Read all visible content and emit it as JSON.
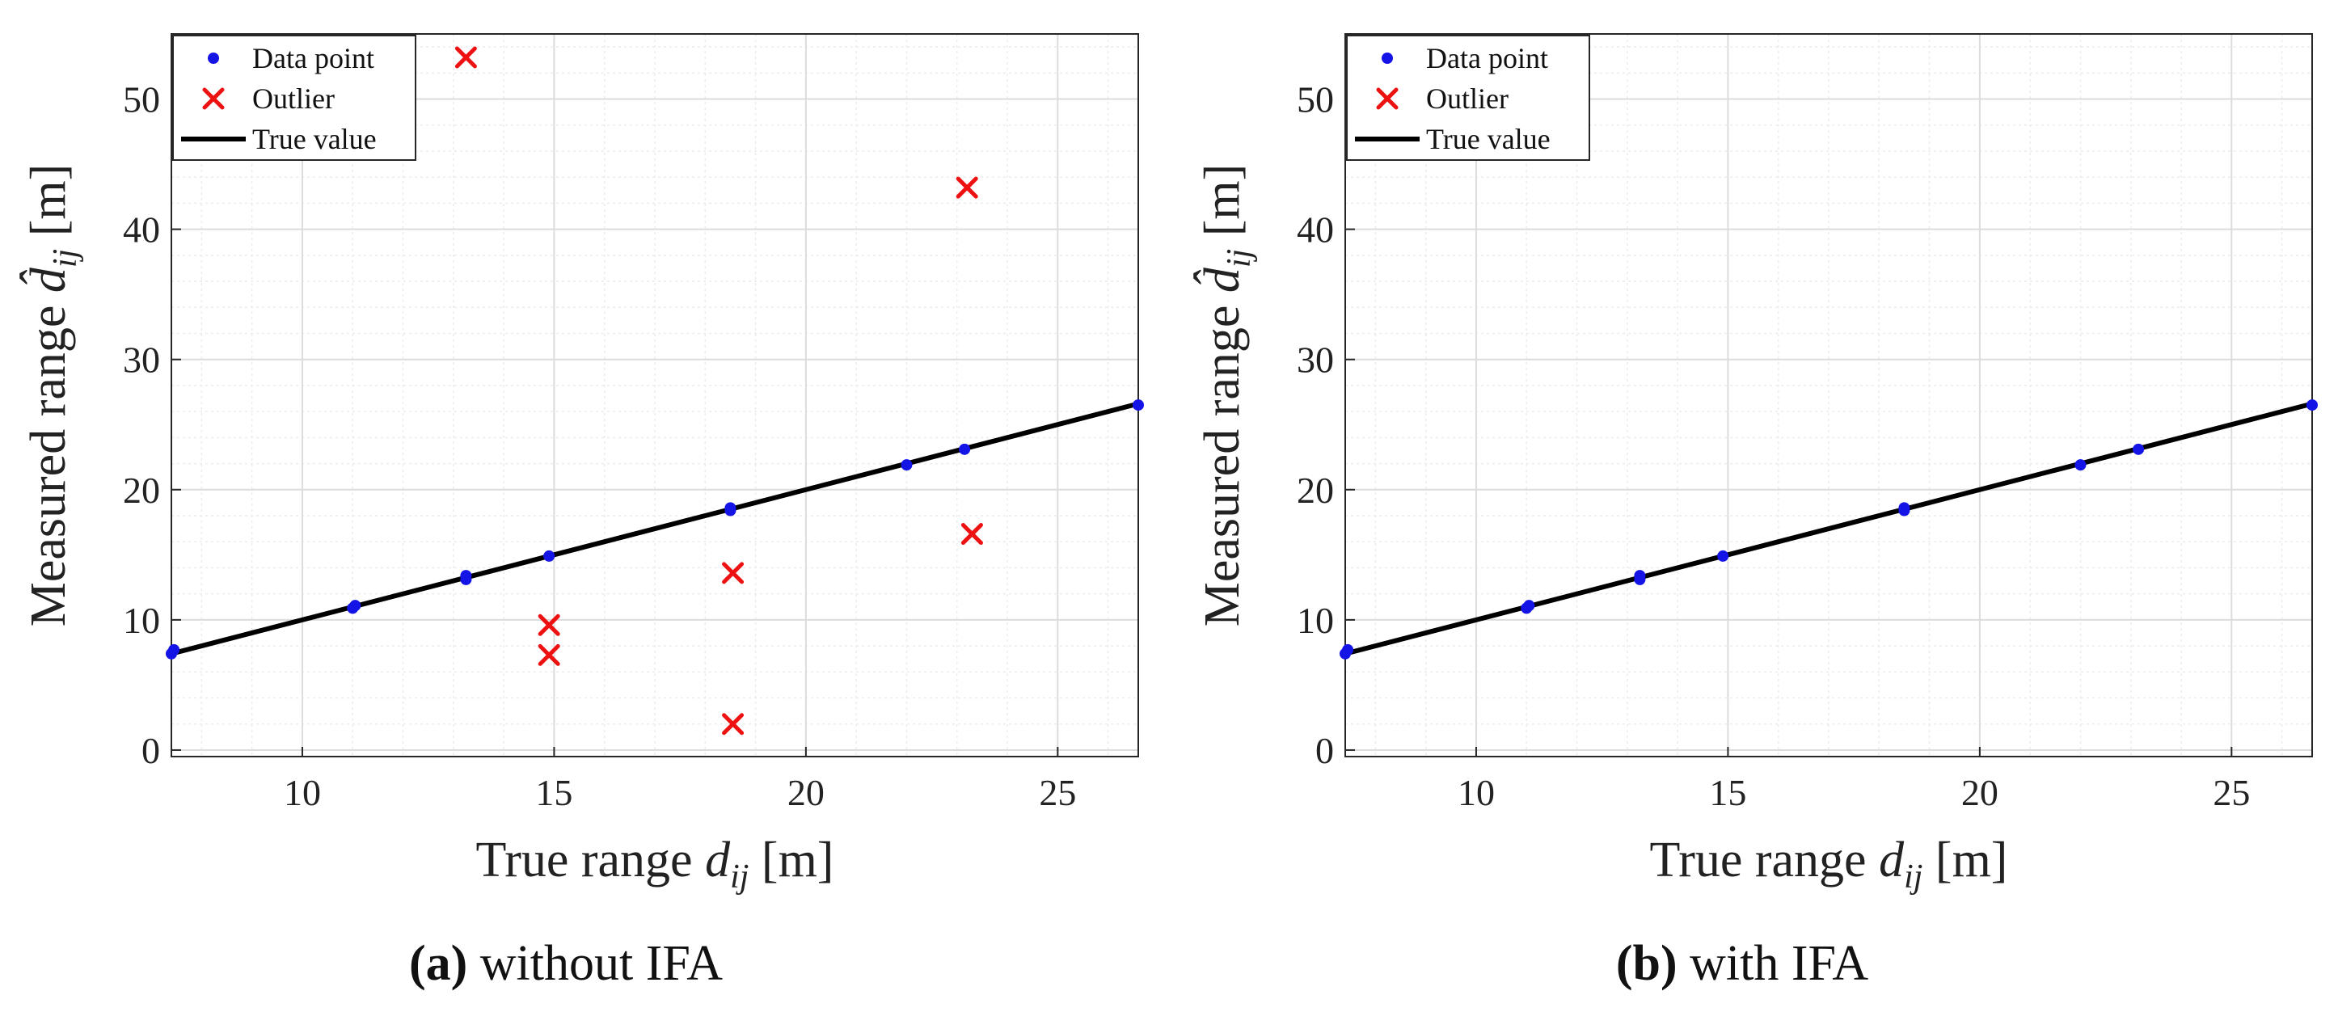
{
  "colors": {
    "data_point": "#1414e6",
    "outlier": "#ee1111",
    "true_value": "#000000",
    "grid_major": "#dcdcdc",
    "grid_minor": "#ececec",
    "axis": "#262626"
  },
  "legend": {
    "data_point": "Data point",
    "outlier": "Outlier",
    "true_value": "True value"
  },
  "axes_text": {
    "xlabel_main": "True range ",
    "xlabel_var": "d",
    "xlabel_sub": "ij",
    "xlabel_unit": " [m]",
    "ylabel_main": "Measured range ",
    "ylabel_var": "d̂",
    "ylabel_sub": "ij",
    "ylabel_unit": " [m]"
  },
  "chart_data": [
    {
      "type": "scatter",
      "panel": "a",
      "caption_label": "(a)",
      "caption_text": "without IFA",
      "xlabel": "True range d_ij [m]",
      "ylabel": "Measured range d̂_ij [m]",
      "xlim": [
        7.4,
        26.6
      ],
      "ylim": [
        -0.5,
        55
      ],
      "xticks": [
        10,
        15,
        20,
        25
      ],
      "yticks": [
        0,
        10,
        20,
        30,
        40,
        50
      ],
      "grid": true,
      "legend_position": "top-left",
      "series": [
        {
          "name": "Data point",
          "points": [
            [
              7.4,
              7.4
            ],
            [
              7.45,
              7.7
            ],
            [
              11.0,
              10.9
            ],
            [
              11.05,
              11.1
            ],
            [
              13.25,
              13.1
            ],
            [
              13.25,
              13.4
            ],
            [
              14.9,
              14.9
            ],
            [
              18.5,
              18.4
            ],
            [
              18.5,
              18.6
            ],
            [
              22.0,
              21.9
            ],
            [
              23.15,
              23.1
            ],
            [
              26.6,
              26.5
            ]
          ]
        },
        {
          "name": "Outlier",
          "points": [
            [
              13.25,
              53.2
            ],
            [
              14.9,
              9.6
            ],
            [
              14.9,
              7.3
            ],
            [
              18.55,
              13.6
            ],
            [
              18.55,
              2.0
            ],
            [
              23.2,
              43.2
            ],
            [
              23.3,
              16.6
            ]
          ]
        },
        {
          "name": "True value",
          "line": [
            [
              7.4,
              7.4
            ],
            [
              26.6,
              26.6
            ]
          ]
        }
      ]
    },
    {
      "type": "scatter",
      "panel": "b",
      "caption_label": "(b)",
      "caption_text": "with IFA",
      "xlabel": "True range d_ij [m]",
      "ylabel": "Measured range d̂_ij [m]",
      "xlim": [
        7.4,
        26.6
      ],
      "ylim": [
        -0.5,
        55
      ],
      "xticks": [
        10,
        15,
        20,
        25
      ],
      "yticks": [
        0,
        10,
        20,
        30,
        40,
        50
      ],
      "grid": true,
      "legend_position": "top-left",
      "series": [
        {
          "name": "Data point",
          "points": [
            [
              7.4,
              7.4
            ],
            [
              7.45,
              7.7
            ],
            [
              11.0,
              10.9
            ],
            [
              11.05,
              11.1
            ],
            [
              13.25,
              13.1
            ],
            [
              13.25,
              13.4
            ],
            [
              14.9,
              14.9
            ],
            [
              18.5,
              18.4
            ],
            [
              18.5,
              18.6
            ],
            [
              22.0,
              21.9
            ],
            [
              23.15,
              23.1
            ],
            [
              26.6,
              26.5
            ]
          ]
        },
        {
          "name": "Outlier",
          "points": []
        },
        {
          "name": "True value",
          "line": [
            [
              7.4,
              7.4
            ],
            [
              26.6,
              26.6
            ]
          ]
        }
      ]
    }
  ]
}
